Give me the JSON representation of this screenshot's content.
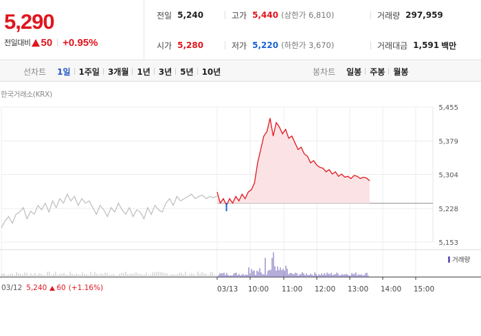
{
  "quote": {
    "price": "5,290",
    "change_label": "전일대비",
    "change_abs": "50",
    "change_pct": "+0.95%",
    "stats": {
      "prev_close_label": "전일",
      "prev_close": "5,240",
      "high_label": "고가",
      "high": "5,440",
      "upper_limit_label": "(상한가 6,810)",
      "volume_label": "거래량",
      "volume": "297,959",
      "open_label": "시가",
      "open": "5,280",
      "low_label": "저가",
      "low": "5,220",
      "lower_limit_label": "(하한가 3,670)",
      "turnover_label": "거래대금",
      "turnover": "1,591",
      "turnover_unit": "백만"
    }
  },
  "toolbar": {
    "line_title": "선차트",
    "line_periods": [
      "1일",
      "1주일",
      "3개월",
      "1년",
      "3년",
      "5년",
      "10년"
    ],
    "active_period": "1일",
    "candle_title": "봉차트",
    "candle_periods": [
      "일봉",
      "주봉",
      "월봉"
    ]
  },
  "source": "한국거래소(KRX)",
  "colors": {
    "up": "#e0161e",
    "down": "#1a62d6",
    "fill": "#fbe3e5",
    "prev": "#bcbcbc",
    "vol_today": "#6b5bb5",
    "vol_prev": "#bdbdbd"
  },
  "chart_data": {
    "type": "line",
    "ylim": [
      5153,
      5455
    ],
    "yticks": [
      "5,455",
      "5,379",
      "5,304",
      "5,228",
      "5,153"
    ],
    "ytick_values": [
      5455,
      5379,
      5304,
      5228,
      5153
    ],
    "xticks": [
      "03/12",
      "03/13",
      "10:00",
      "11:00",
      "12:00",
      "13:00",
      "14:00",
      "15:00"
    ],
    "prev_close": 5240,
    "series": [
      {
        "name": "03/12",
        "values": [
          5185,
          5200,
          5210,
          5195,
          5215,
          5220,
          5230,
          5205,
          5222,
          5215,
          5235,
          5225,
          5240,
          5220,
          5245,
          5230,
          5250,
          5240,
          5260,
          5245,
          5255,
          5235,
          5250,
          5240,
          5245,
          5230,
          5215,
          5235,
          5225,
          5210,
          5230,
          5220,
          5240,
          5225,
          5215,
          5230,
          5210,
          5225,
          5220,
          5205,
          5230,
          5215,
          5235,
          5225,
          5220,
          5240,
          5250,
          5235,
          5255,
          5245,
          5250,
          5255,
          5260,
          5250,
          5255,
          5258,
          5250,
          5255,
          5252,
          5256
        ]
      },
      {
        "name": "03/13",
        "values": [
          5265,
          5240,
          5250,
          5235,
          5250,
          5240,
          5255,
          5245,
          5260,
          5250,
          5265,
          5270,
          5285,
          5330,
          5360,
          5390,
          5400,
          5430,
          5390,
          5420,
          5410,
          5395,
          5405,
          5385,
          5390,
          5375,
          5360,
          5365,
          5350,
          5345,
          5330,
          5335,
          5325,
          5320,
          5318,
          5310,
          5315,
          5305,
          5310,
          5300,
          5305,
          5298,
          5300,
          5295,
          5302,
          5300,
          5295,
          5298,
          5296,
          5290
        ]
      }
    ],
    "volume_legend": "거래량"
  },
  "footer": {
    "date": "03/12",
    "price": "5,240",
    "change": "60",
    "pct": "(+1.16%)"
  }
}
